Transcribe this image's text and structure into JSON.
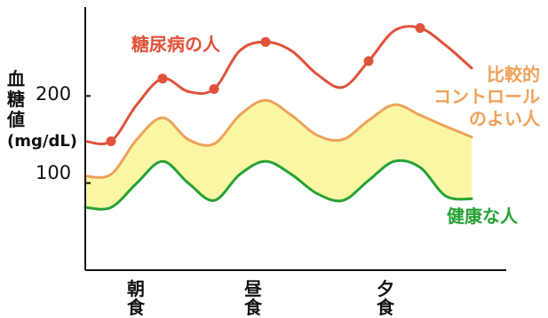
{
  "chart_data": {
    "type": "line",
    "ylabel": "血糖値",
    "yunit": "(mg/dL)",
    "y_ticks": [
      {
        "value": 100,
        "label": "100"
      },
      {
        "value": 200,
        "label": "200"
      }
    ],
    "ylim": [
      0,
      300
    ],
    "categories": [
      {
        "label": "朝食",
        "x": 2
      },
      {
        "label": "昼食",
        "x": 7
      },
      {
        "label": "夕食",
        "x": 12
      }
    ],
    "xlim": [
      0,
      16
    ],
    "series": [
      {
        "name": "糖尿病の人",
        "color": "#e0523a",
        "x": [
          0,
          1,
          2,
          3,
          4,
          5,
          6,
          7,
          8,
          9,
          10,
          11,
          12,
          13,
          14,
          15
        ],
        "values": [
          148,
          148,
          190,
          220,
          205,
          208,
          252,
          262,
          252,
          225,
          210,
          240,
          275,
          278,
          258,
          232
        ],
        "markers": [
          1,
          3,
          5,
          7,
          11,
          13
        ]
      },
      {
        "name": "比較的\nコントロール\nのよい人",
        "color": "#eea25a",
        "band_color": "#fbf6a4",
        "x": [
          0,
          1,
          2,
          3,
          4,
          5,
          6,
          7,
          8,
          9,
          10,
          11,
          12,
          13,
          14,
          15
        ],
        "values": [
          108,
          110,
          150,
          175,
          150,
          145,
          178,
          195,
          178,
          155,
          150,
          172,
          190,
          178,
          165,
          153
        ],
        "values_lower": [
          72,
          72,
          100,
          125,
          100,
          80,
          110,
          125,
          110,
          88,
          80,
          103,
          125,
          118,
          85,
          82
        ]
      },
      {
        "name": "健康な人",
        "color": "#26a235",
        "x": [
          0,
          1,
          2,
          3,
          4,
          5,
          6,
          7,
          8,
          9,
          10,
          11,
          12,
          13,
          14,
          15
        ],
        "values": [
          72,
          72,
          100,
          125,
          100,
          80,
          110,
          125,
          110,
          88,
          80,
          103,
          125,
          118,
          85,
          82
        ]
      }
    ]
  }
}
